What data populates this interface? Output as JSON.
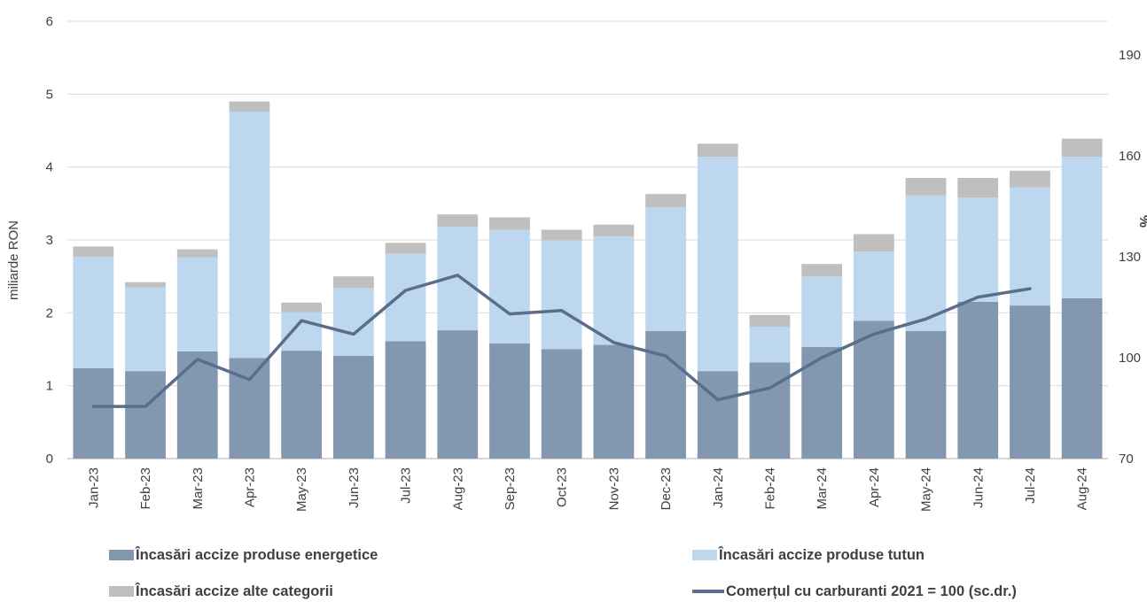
{
  "chart_data": {
    "type": "bar",
    "stacked": true,
    "categories": [
      "Jan-23",
      "Feb-23",
      "Mar-23",
      "Apr-23",
      "May-23",
      "Jun-23",
      "Jul-23",
      "Aug-23",
      "Sep-23",
      "Oct-23",
      "Nov-23",
      "Dec-23",
      "Jan-24",
      "Feb-24",
      "Mar-24",
      "Apr-24",
      "May-24",
      "Jun-24",
      "Jul-24",
      "Aug-24"
    ],
    "series": [
      {
        "name": "Încasări accize produse energetice",
        "kind": "bar",
        "axis": "left",
        "color": "#8497b0",
        "values": [
          1.24,
          1.2,
          1.47,
          1.38,
          1.48,
          1.41,
          1.61,
          1.76,
          1.58,
          1.5,
          1.56,
          1.75,
          1.2,
          1.32,
          1.53,
          1.89,
          1.75,
          2.15,
          2.1,
          2.2
        ]
      },
      {
        "name": "Încasări accize produse tutun",
        "kind": "bar",
        "axis": "left",
        "color": "#bdd7ee",
        "values": [
          1.53,
          1.15,
          1.29,
          3.38,
          0.53,
          0.93,
          1.2,
          1.42,
          1.56,
          1.49,
          1.49,
          1.7,
          2.94,
          0.49,
          0.97,
          0.95,
          1.86,
          1.43,
          1.62,
          1.94
        ]
      },
      {
        "name": "Încasări accize alte categorii",
        "kind": "bar",
        "axis": "left",
        "color": "#bfbfbf",
        "values": [
          0.14,
          0.07,
          0.11,
          0.14,
          0.13,
          0.16,
          0.15,
          0.17,
          0.17,
          0.15,
          0.16,
          0.18,
          0.18,
          0.16,
          0.17,
          0.24,
          0.24,
          0.27,
          0.23,
          0.25
        ]
      },
      {
        "name": "Comerțul cu carburanti 2021 = 100 (sc.dr.)",
        "kind": "line",
        "axis": "right",
        "color": "#5a6e8c",
        "values": [
          85.5,
          85.5,
          99.5,
          93.5,
          111,
          107,
          120,
          124.5,
          113,
          114,
          104.5,
          100.5,
          87.5,
          91,
          100,
          107,
          111.5,
          118,
          120.5,
          null
        ]
      }
    ],
    "left_axis": {
      "label": "miliarde RON",
      "ylim": [
        0,
        6
      ],
      "ticks": [
        0,
        1,
        2,
        3,
        4,
        5,
        6
      ]
    },
    "right_axis": {
      "label": "%",
      "ylim": [
        70,
        200
      ],
      "ticks": [
        70,
        100,
        130,
        160,
        190
      ]
    },
    "grid": true,
    "legend_position": "bottom"
  }
}
